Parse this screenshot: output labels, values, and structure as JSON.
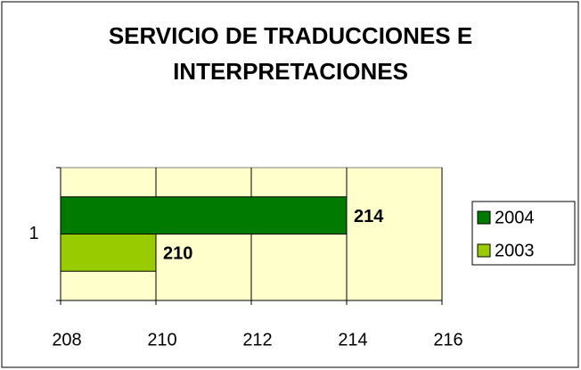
{
  "chart_data": {
    "type": "bar",
    "orientation": "horizontal",
    "title": "SERVICIO DE TRADUCCIONES E INTERPRETACIONES",
    "categories": [
      "1"
    ],
    "series": [
      {
        "name": "2004",
        "color": "#007a00",
        "values": [
          214
        ]
      },
      {
        "name": "2003",
        "color": "#99cc00",
        "values": [
          210
        ]
      }
    ],
    "xlim": [
      208,
      216
    ],
    "xticks": [
      208,
      210,
      212,
      214,
      216
    ],
    "grid": true,
    "legend": "right",
    "plot_background": "#ffffcc"
  }
}
